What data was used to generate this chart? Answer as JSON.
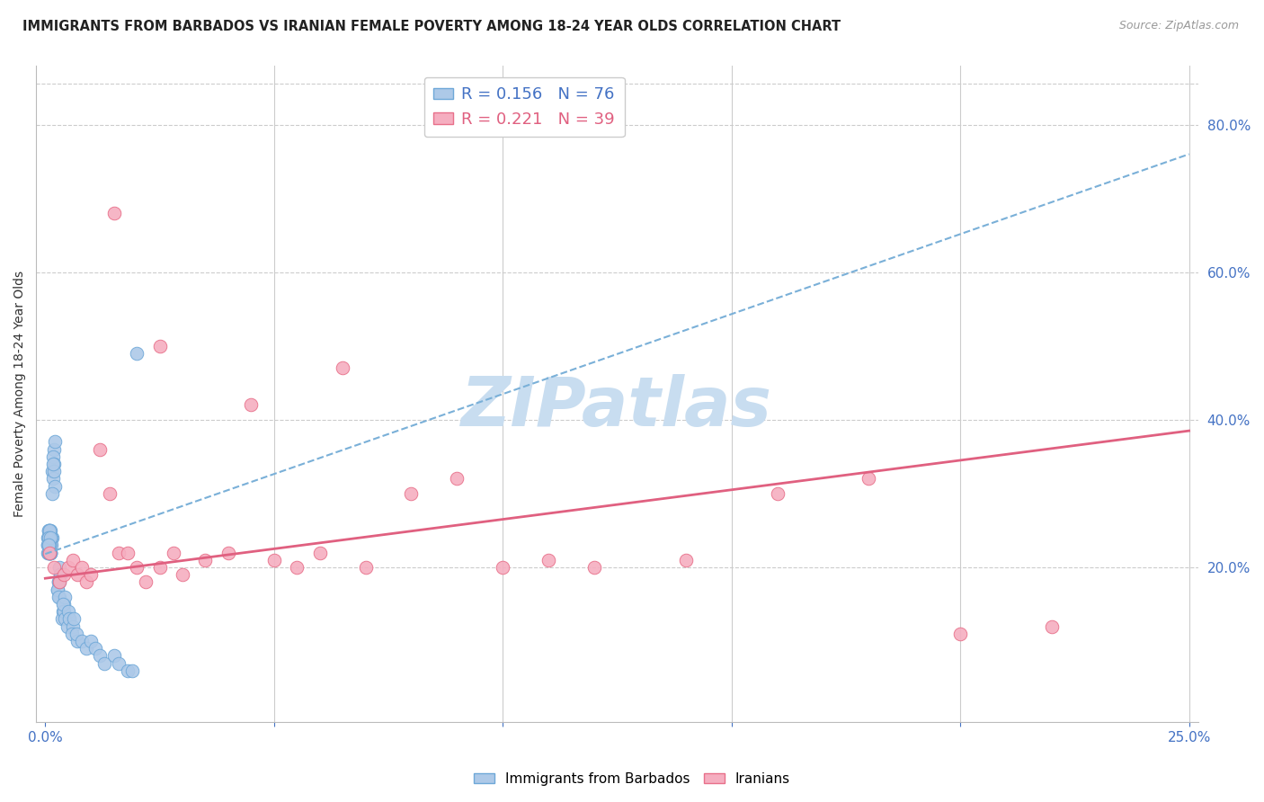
{
  "title": "IMMIGRANTS FROM BARBADOS VS IRANIAN FEMALE POVERTY AMONG 18-24 YEAR OLDS CORRELATION CHART",
  "source": "Source: ZipAtlas.com",
  "ylabel": "Female Poverty Among 18-24 Year Olds",
  "xlim": [
    -0.002,
    0.252
  ],
  "ylim": [
    -0.01,
    0.88
  ],
  "yticks_right": [
    0.2,
    0.4,
    0.6,
    0.8
  ],
  "ytick_labels_right": [
    "20.0%",
    "40.0%",
    "60.0%",
    "80.0%"
  ],
  "barbados_fill": "#adc9e8",
  "barbados_edge": "#6ea8d8",
  "iranian_fill": "#f5aec0",
  "iranian_edge": "#e8708a",
  "trend_barbados_color": "#7ab0d8",
  "trend_iranian_color": "#e06080",
  "R_barbados": 0.156,
  "N_barbados": 76,
  "R_iranian": 0.221,
  "N_iranian": 39,
  "legend_label_barbados": "Immigrants from Barbados",
  "legend_label_iranian": "Iranians",
  "watermark": "ZIPatlas",
  "watermark_color": "#c8ddf0",
  "background_color": "#ffffff",
  "grid_color": "#cccccc",
  "title_color": "#222222",
  "source_color": "#999999",
  "axis_label_color": "#333333",
  "tick_color": "#4472c4",
  "barbados_x": [
    0.0005,
    0.001,
    0.0008,
    0.0012,
    0.0007,
    0.0015,
    0.001,
    0.0009,
    0.0011,
    0.0006,
    0.0013,
    0.0008,
    0.001,
    0.0014,
    0.0009,
    0.0007,
    0.0011,
    0.0006,
    0.0008,
    0.001,
    0.0012,
    0.0009,
    0.0007,
    0.0011,
    0.0006,
    0.0008,
    0.001,
    0.0012,
    0.0009,
    0.0007,
    0.002,
    0.0018,
    0.0022,
    0.0016,
    0.002,
    0.0018,
    0.0022,
    0.0016,
    0.002,
    0.0018,
    0.003,
    0.0028,
    0.0032,
    0.0026,
    0.003,
    0.0028,
    0.0032,
    0.0026,
    0.003,
    0.0028,
    0.004,
    0.0038,
    0.0042,
    0.0036,
    0.004,
    0.0038,
    0.0042,
    0.005,
    0.0048,
    0.0052,
    0.006,
    0.0058,
    0.0062,
    0.007,
    0.0068,
    0.008,
    0.009,
    0.01,
    0.011,
    0.012,
    0.013,
    0.015,
    0.016,
    0.018,
    0.019,
    0.02
  ],
  "barbados_y": [
    0.22,
    0.24,
    0.23,
    0.25,
    0.22,
    0.24,
    0.23,
    0.25,
    0.22,
    0.24,
    0.23,
    0.25,
    0.22,
    0.24,
    0.23,
    0.25,
    0.22,
    0.23,
    0.24,
    0.25,
    0.22,
    0.23,
    0.24,
    0.22,
    0.23,
    0.22,
    0.23,
    0.24,
    0.22,
    0.23,
    0.36,
    0.35,
    0.37,
    0.33,
    0.34,
    0.32,
    0.31,
    0.3,
    0.33,
    0.34,
    0.2,
    0.18,
    0.19,
    0.17,
    0.16,
    0.18,
    0.19,
    0.17,
    0.18,
    0.16,
    0.15,
    0.14,
    0.16,
    0.13,
    0.14,
    0.15,
    0.13,
    0.14,
    0.12,
    0.13,
    0.12,
    0.11,
    0.13,
    0.1,
    0.11,
    0.1,
    0.09,
    0.1,
    0.09,
    0.08,
    0.07,
    0.08,
    0.07,
    0.06,
    0.06,
    0.49
  ],
  "iranian_x": [
    0.001,
    0.002,
    0.003,
    0.004,
    0.005,
    0.006,
    0.007,
    0.008,
    0.009,
    0.01,
    0.012,
    0.014,
    0.016,
    0.018,
    0.02,
    0.022,
    0.025,
    0.028,
    0.03,
    0.035,
    0.04,
    0.045,
    0.05,
    0.055,
    0.06,
    0.065,
    0.07,
    0.08,
    0.09,
    0.1,
    0.11,
    0.12,
    0.14,
    0.16,
    0.18,
    0.2,
    0.22,
    0.015,
    0.025
  ],
  "iranian_y": [
    0.22,
    0.2,
    0.18,
    0.19,
    0.2,
    0.21,
    0.19,
    0.2,
    0.18,
    0.19,
    0.36,
    0.3,
    0.22,
    0.22,
    0.2,
    0.18,
    0.2,
    0.22,
    0.19,
    0.21,
    0.22,
    0.42,
    0.21,
    0.2,
    0.22,
    0.47,
    0.2,
    0.3,
    0.32,
    0.2,
    0.21,
    0.2,
    0.21,
    0.3,
    0.32,
    0.11,
    0.12,
    0.68,
    0.5
  ],
  "trend_b_x0": 0.0,
  "trend_b_y0": 0.218,
  "trend_b_x1": 0.25,
  "trend_b_y1": 0.76,
  "trend_i_x0": 0.0,
  "trend_i_y0": 0.185,
  "trend_i_x1": 0.25,
  "trend_i_y1": 0.385
}
